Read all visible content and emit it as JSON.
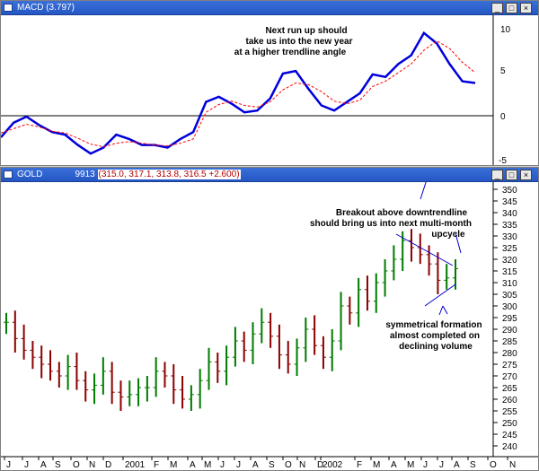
{
  "macd_panel": {
    "title": "MACD (3.797)",
    "y_ticks": [
      "10",
      "5",
      "0",
      "-5"
    ],
    "annotation": [
      "Next run up should",
      "take us into the new year",
      "at a higher trendline angle"
    ]
  },
  "gold_panel": {
    "title_name": "GOLD",
    "title_value": "9913",
    "title_quote": "(315.0, 317.1, 313.8, 316.5 +2.600)",
    "y_ticks": [
      "350",
      "345",
      "340",
      "335",
      "330",
      "325",
      "320",
      "315",
      "310",
      "305",
      "300",
      "295",
      "290",
      "285",
      "280",
      "275",
      "270",
      "265",
      "260",
      "255",
      "250",
      "245",
      "240"
    ],
    "annotation_top": [
      "Breakout above downtrendline",
      "should bring us into next multi-month",
      "upcycle"
    ],
    "annotation_bottom": [
      "symmetrical formation",
      "almost completed on",
      "declining volume"
    ]
  },
  "x_axis": {
    "labels": [
      "J",
      "J",
      "A",
      "S",
      "O",
      "N",
      "D",
      "2001",
      "F",
      "M",
      "A",
      "M",
      "J",
      "J",
      "A",
      "S",
      "O",
      "N",
      "D",
      "2002",
      "F",
      "M",
      "A",
      "M",
      "J",
      "J",
      "A",
      "S",
      "O",
      "N"
    ]
  },
  "window_buttons": [
    "_",
    "□",
    "×"
  ],
  "colors": {
    "titlebar": "#2457c5",
    "macd": "#0000dd",
    "signal": "#ff0000",
    "bar_up": "#007a00",
    "bar_down": "#8b0000",
    "trendline": "#0000cc"
  },
  "chart_data": [
    {
      "type": "line",
      "title": "MACD (3.797)",
      "ylim": [
        -5,
        11
      ],
      "series": [
        {
          "name": "MACD",
          "values": [
            -2.5,
            -0.8,
            -0.1,
            -1.1,
            -1.9,
            -2.2,
            -3.4,
            -4.4,
            -3.7,
            -2.2,
            -2.7,
            -3.4,
            -3.4,
            -3.7,
            -2.7,
            -1.9,
            1.6,
            2.2,
            1.4,
            0.4,
            0.6,
            2.0,
            4.9,
            5.2,
            3.1,
            1.2,
            0.6,
            1.6,
            2.6,
            4.8,
            4.5,
            6.0,
            7.0,
            9.6,
            8.4,
            6.0,
            4.0,
            3.8
          ]
        },
        {
          "name": "",
          "values": [
            -2.0,
            -1.5,
            -1.0,
            -1.3,
            -1.8,
            -2.0,
            -2.6,
            -3.3,
            -3.6,
            -3.2,
            -3.0,
            -3.2,
            -3.4,
            -3.5,
            -3.2,
            -2.7,
            0.4,
            1.3,
            1.7,
            1.2,
            1.0,
            1.6,
            3.0,
            3.8,
            3.6,
            2.8,
            1.7,
            1.4,
            1.8,
            3.4,
            4.0,
            5.0,
            6.0,
            7.6,
            8.7,
            7.8,
            6.2,
            5.0
          ]
        }
      ]
    },
    {
      "type": "ohlc",
      "title": "GOLD",
      "ylim": [
        238,
        352
      ],
      "values_close": [
        293,
        286,
        281,
        278,
        275,
        272,
        270,
        274,
        268,
        264,
        266,
        272,
        263,
        261,
        262,
        265,
        265,
        272,
        270,
        264,
        260,
        262,
        268,
        276,
        272,
        278,
        285,
        281,
        288,
        293,
        287,
        279,
        275,
        282,
        290,
        283,
        278,
        285,
        300,
        297,
        307,
        302,
        310,
        315,
        320,
        328,
        325,
        322,
        318,
        311,
        312,
        316
      ]
    }
  ]
}
